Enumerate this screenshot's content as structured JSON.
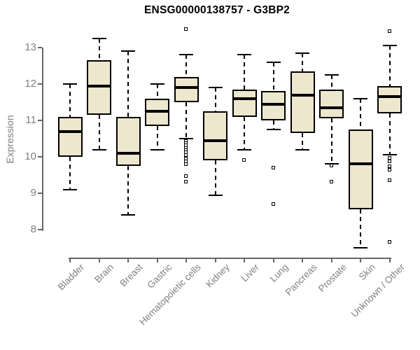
{
  "chart_data": {
    "type": "boxplot",
    "title": "ENSG00000138757 - G3BP2",
    "ylabel": "Expression",
    "xlabel": "",
    "yticks": [
      13,
      12,
      11,
      10,
      9,
      8
    ],
    "ylim": [
      7.2,
      13.7
    ],
    "grid": false,
    "legend": false,
    "categories": [
      "Bladder",
      "Brain",
      "Breast",
      "Gastric",
      "Hematopoietic cells",
      "Kidney",
      "Liver",
      "Lung",
      "Pancreas",
      "Prostate",
      "Skin",
      "Unknown / Other"
    ],
    "series": [
      {
        "label": "Bladder",
        "whisker_low": 9.1,
        "q1": 10.0,
        "median": 10.7,
        "q3": 11.1,
        "whisker_high": 12.0,
        "outliers": []
      },
      {
        "label": "Brain",
        "whisker_low": 10.2,
        "q1": 11.15,
        "median": 11.95,
        "q3": 12.65,
        "whisker_high": 13.25,
        "outliers": []
      },
      {
        "label": "Breast",
        "whisker_low": 8.4,
        "q1": 9.75,
        "median": 10.1,
        "q3": 11.1,
        "whisker_high": 12.9,
        "outliers": []
      },
      {
        "label": "Gastric",
        "whisker_low": 10.2,
        "q1": 10.85,
        "median": 11.25,
        "q3": 11.6,
        "whisker_high": 12.0,
        "outliers": []
      },
      {
        "label": "Hematopoietic cells",
        "whisker_low": 10.5,
        "q1": 11.5,
        "median": 11.9,
        "q3": 12.2,
        "whisker_high": 12.8,
        "outliers": [
          13.5,
          10.42,
          10.36,
          10.3,
          10.24,
          10.18,
          10.12,
          10.03,
          9.95,
          9.86,
          9.79,
          9.47,
          9.31
        ]
      },
      {
        "label": "Kidney",
        "whisker_low": 8.95,
        "q1": 9.9,
        "median": 10.45,
        "q3": 11.25,
        "whisker_high": 11.9,
        "outliers": []
      },
      {
        "label": "Liver",
        "whisker_low": 10.2,
        "q1": 11.1,
        "median": 11.6,
        "q3": 11.85,
        "whisker_high": 12.8,
        "outliers": [
          9.9
        ]
      },
      {
        "label": "Lung",
        "whisker_low": 10.75,
        "q1": 11.0,
        "median": 11.45,
        "q3": 11.8,
        "whisker_high": 12.6,
        "outliers": [
          9.7,
          8.7
        ]
      },
      {
        "label": "Pancreas",
        "whisker_low": 10.2,
        "q1": 10.65,
        "median": 11.7,
        "q3": 12.35,
        "whisker_high": 12.85,
        "outliers": []
      },
      {
        "label": "Prostate",
        "whisker_low": 9.8,
        "q1": 11.05,
        "median": 11.35,
        "q3": 11.85,
        "whisker_high": 12.25,
        "outliers": [
          9.75,
          9.3
        ]
      },
      {
        "label": "Skin",
        "whisker_low": 7.5,
        "q1": 8.55,
        "median": 9.8,
        "q3": 10.75,
        "whisker_high": 11.6,
        "outliers": []
      },
      {
        "label": "Unknown / Other",
        "whisker_low": 10.05,
        "q1": 11.2,
        "median": 11.65,
        "q3": 11.95,
        "whisker_high": 13.05,
        "outliers": [
          13.45,
          9.97,
          9.86,
          9.74,
          9.63,
          9.35,
          7.65
        ]
      }
    ],
    "colors": {
      "box_fill": "#EDE7CE",
      "box_border": "#000000",
      "median": "#000000",
      "whisker": "#000000",
      "outlier": "#000000",
      "axis": "#666666",
      "tick_label": "#808080",
      "axis_label": "#808080",
      "title": "#000000"
    }
  }
}
